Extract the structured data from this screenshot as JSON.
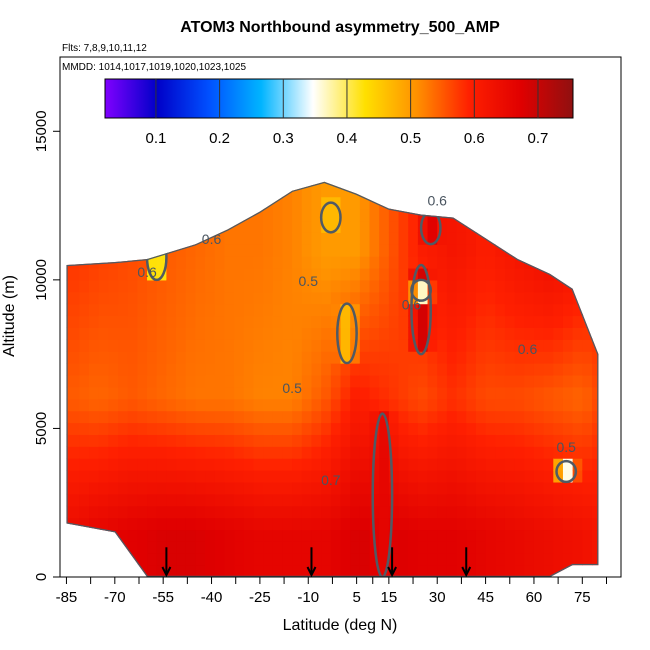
{
  "chart_data": {
    "type": "heatmap",
    "title": "ATOM3 Northbound asymmetry_500_AMP",
    "subtitle_line1": "Flts: 7,8,9,10,11,12",
    "subtitle_line2": "MMDD: 1014,1017,1019,1020,1023,1025",
    "xlabel": "Latitude (deg N)",
    "ylabel": "Altitude (m)",
    "xlim": [
      -87,
      87
    ],
    "ylim": [
      0,
      17500
    ],
    "x_ticks": [
      "-85",
      "-70",
      "-55",
      "-40",
      "-25",
      "-10",
      "5",
      "15",
      "30",
      "45",
      "60",
      "75"
    ],
    "x_tick_values": [
      -85,
      -70,
      -55,
      -40,
      -25,
      -10,
      5,
      15,
      30,
      45,
      60,
      75
    ],
    "x_minor_ticks": [
      -77.5,
      -62.5,
      -47.5,
      -32.5,
      -17.5,
      -2.5,
      10,
      22.5,
      37.5,
      52.5,
      67.5,
      82.5
    ],
    "y_ticks": [
      "0",
      "5000",
      "10000",
      "15000"
    ],
    "y_tick_values": [
      0,
      5000,
      10000,
      15000
    ],
    "colorbar": {
      "range": [
        0.02,
        0.755
      ],
      "tick_labels": [
        "0.1",
        "0.2",
        "0.3",
        "0.4",
        "0.5",
        "0.6",
        "0.7"
      ],
      "tick_values": [
        0.1,
        0.2,
        0.3,
        0.4,
        0.5,
        0.6,
        0.7
      ],
      "colors": [
        "#8000ff",
        "#0000c8",
        "#0050ff",
        "#00b4ff",
        "#ffffff",
        "#ffe000",
        "#ff9000",
        "#ff2000",
        "#e00000",
        "#901010"
      ]
    },
    "contour_labels": [
      "0.6",
      "0.6",
      "0.6",
      "0.5",
      "0.5",
      "0.6",
      "0.6",
      "0.7",
      "0.5"
    ],
    "envelope": {
      "lat": [
        -85,
        -70,
        -60,
        -45,
        -35,
        -25,
        -15,
        -5,
        5,
        15,
        25,
        35,
        45,
        55,
        65,
        72,
        80
      ],
      "top_alt": [
        10500,
        10600,
        10700,
        11200,
        11700,
        12300,
        13000,
        13300,
        12900,
        12400,
        12200,
        12100,
        11400,
        10700,
        10200,
        9700,
        7500
      ],
      "bottom_alt": [
        1800,
        1500,
        0,
        0,
        0,
        0,
        0,
        0,
        0,
        0,
        0,
        0,
        0,
        0,
        0,
        400,
        400
      ]
    },
    "mean_value_by_lat": {
      "lat": [
        -85,
        -75,
        -65,
        -55,
        -45,
        -35,
        -25,
        -15,
        -5,
        5,
        15,
        25,
        35,
        45,
        55,
        65,
        75,
        80
      ],
      "surface": [
        0.64,
        0.66,
        0.67,
        0.68,
        0.68,
        0.67,
        0.66,
        0.66,
        0.66,
        0.68,
        0.68,
        0.67,
        0.67,
        0.66,
        0.65,
        0.64,
        0.63,
        0.62
      ],
      "mid": [
        0.55,
        0.54,
        0.55,
        0.54,
        0.53,
        0.53,
        0.52,
        0.52,
        0.55,
        0.6,
        0.58,
        0.56,
        0.58,
        0.56,
        0.56,
        0.55,
        0.54,
        0.56
      ],
      "upper": [
        0.58,
        0.57,
        0.56,
        0.55,
        0.54,
        0.53,
        0.53,
        0.52,
        0.5,
        0.5,
        0.55,
        0.6,
        0.62,
        0.6,
        0.62,
        0.64,
        0.62,
        0.6
      ]
    },
    "features": [
      {
        "lat": 13,
        "alt_bottom": 0,
        "alt_top": 5500,
        "value": 0.66
      },
      {
        "lat": 25,
        "alt_bottom": 7500,
        "alt_top": 10500,
        "value": 0.7
      },
      {
        "lat": 28,
        "alt_bottom": 11200,
        "alt_top": 12300,
        "value": 0.68
      },
      {
        "lat": -3,
        "alt_bottom": 11600,
        "alt_top": 12600,
        "value": 0.45
      },
      {
        "lat": 2,
        "alt_bottom": 7200,
        "alt_top": 9200,
        "value": 0.46
      },
      {
        "lat": 25,
        "alt_bottom": 9300,
        "alt_top": 10000,
        "value": 0.32
      },
      {
        "lat": 70,
        "alt_bottom": 3200,
        "alt_top": 3900,
        "value": 0.32
      },
      {
        "lat": -57,
        "alt_bottom": 10000,
        "alt_top": 11500,
        "value": 0.35
      }
    ],
    "arrows_lat": [
      -54,
      -9,
      16,
      39
    ],
    "grid": false
  }
}
